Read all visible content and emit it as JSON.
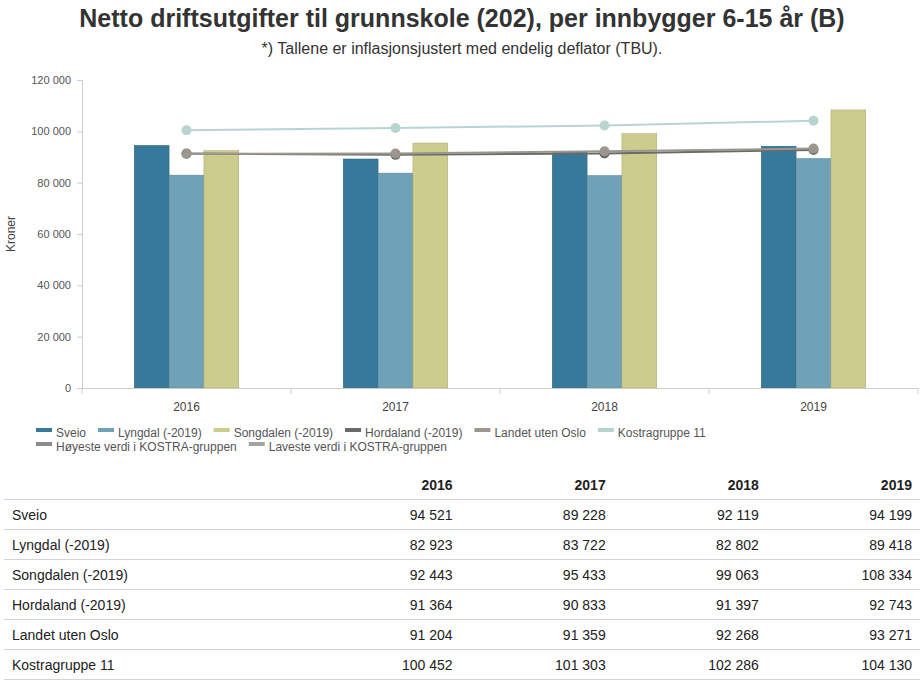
{
  "chart_data": {
    "type": "bar",
    "title": "Netto driftsutgifter til grunnskole (202), per innbygger 6-15 år (B)",
    "subtitle": "*) Tallene er inflasjonsjustert med endelig deflator (TBU).",
    "y_label": "Kroner",
    "categories": [
      "2016",
      "2017",
      "2018",
      "2019"
    ],
    "ylim": [
      0,
      120000
    ],
    "yticks": [
      0,
      {
        "value": 20000,
        "label": "20 000"
      },
      {
        "value": 40000,
        "label": "40 000"
      },
      {
        "value": 60000,
        "label": "60 000"
      },
      {
        "value": 80000,
        "label": "80 000"
      },
      {
        "value": 100000,
        "label": "100 000"
      },
      {
        "value": 120000,
        "label": "120 000"
      }
    ],
    "grid": false,
    "legend": "bottom",
    "series": [
      {
        "name": "Sveio",
        "type": "bar",
        "color": "#36799b",
        "values": [
          94521,
          89228,
          92119,
          94199
        ],
        "value_labels": [
          "94 521",
          "89 228",
          "92 119",
          "94 199"
        ]
      },
      {
        "name": "Lyngdal (-2019)",
        "type": "bar",
        "color": "#6fa2b6",
        "values": [
          82923,
          83722,
          82802,
          89418
        ],
        "value_labels": [
          "82 923",
          "83 722",
          "82 802",
          "89 418"
        ]
      },
      {
        "name": "Songdalen (-2019)",
        "type": "bar",
        "color": "#cccc8c",
        "values": [
          92443,
          95433,
          99063,
          108334
        ],
        "value_labels": [
          "92 443",
          "95 433",
          "99 063",
          "108 334"
        ]
      },
      {
        "name": "Hordaland (-2019)",
        "type": "line",
        "marker": "circle",
        "color": "#6a6a6a",
        "values": [
          91364,
          90833,
          91397,
          92743
        ],
        "value_labels": [
          "91 364",
          "90 833",
          "91 397",
          "92 743"
        ]
      },
      {
        "name": "Landet uten Oslo",
        "type": "line",
        "marker": "circle",
        "color": "#9b978f",
        "values": [
          91204,
          91359,
          92268,
          93271
        ],
        "value_labels": [
          "91 204",
          "91 359",
          "92 268",
          "93 271"
        ]
      },
      {
        "name": "Kostragruppe 11",
        "type": "line",
        "marker": "circle",
        "color": "#b8d4d2",
        "values": [
          100452,
          101303,
          102286,
          104130
        ],
        "value_labels": [
          "100 452",
          "101 303",
          "102 286",
          "104 130"
        ]
      },
      {
        "name": "Høyeste verdi i KOSTRA-gruppen",
        "type": "line",
        "marker": "circle",
        "color": "#8c8c8c",
        "values": [
          null,
          null,
          null,
          null
        ]
      },
      {
        "name": "Laveste verdi i KOSTRA-gruppen",
        "type": "line",
        "marker": "circle",
        "color": "#a3a3a3",
        "values": [
          null,
          null,
          null,
          null
        ]
      }
    ]
  }
}
